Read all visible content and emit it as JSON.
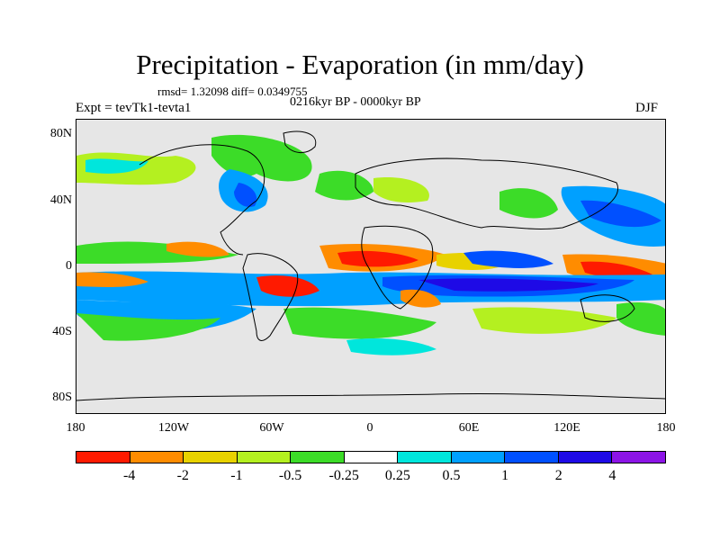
{
  "title": "Precipitation - Evaporation (in mm/day)",
  "stats": "rmsd= 1.32098 diff= 0.0349755",
  "period": "0216kyr BP - 0000kyr BP",
  "experiment": "Expt = tevTk1-tevta1",
  "season": "DJF",
  "lat_ticks": [
    "80N",
    "40N",
    "0",
    "40S",
    "80S"
  ],
  "lon_ticks": [
    "180",
    "120W",
    "60W",
    "0",
    "60E",
    "120E",
    "180"
  ],
  "colorbar": {
    "labels": [
      "-4",
      "-2",
      "-1",
      "-0.5",
      "-0.25",
      "0.25",
      "0.5",
      "1",
      "2",
      "4"
    ],
    "colors": [
      "#ff1a00",
      "#ff8c00",
      "#e8d200",
      "#b4f020",
      "#3cdc28",
      "#ffffff",
      "#00e6dc",
      "#00a0ff",
      "#0050ff",
      "#1e0ae6",
      "#8c14e6"
    ]
  }
}
